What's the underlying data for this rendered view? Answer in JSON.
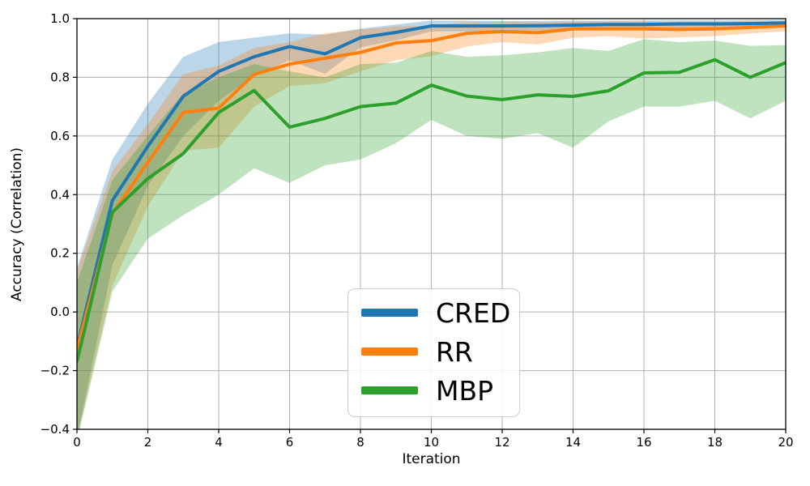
{
  "figure": {
    "background": "#ffffff",
    "grid_color": "#b0b0b0",
    "spine_color": "#000000",
    "tick_color": "#000000"
  },
  "chart_data": {
    "type": "line",
    "title": "",
    "xlabel": "Iteration",
    "ylabel": "Accuracy (Correlation)",
    "xlim": [
      0,
      20
    ],
    "ylim": [
      -0.4,
      1.0
    ],
    "grid": true,
    "legend_position": "lower center",
    "band_opacity": 0.3,
    "xticks": [
      0,
      2,
      4,
      6,
      8,
      10,
      12,
      14,
      16,
      18,
      20
    ],
    "xtick_labels": [
      "0",
      "2",
      "4",
      "6",
      "8",
      "10",
      "12",
      "14",
      "16",
      "18",
      "20"
    ],
    "yticks": [
      -0.4,
      -0.2,
      0.0,
      0.2,
      0.4,
      0.6,
      0.8,
      1.0
    ],
    "ytick_labels": [
      "−0.4",
      "−0.2",
      "0.0",
      "0.2",
      "0.4",
      "0.6",
      "0.8",
      "1.0"
    ],
    "x": [
      0,
      1,
      2,
      3,
      4,
      5,
      6,
      7,
      8,
      9,
      10,
      11,
      12,
      13,
      14,
      15,
      16,
      17,
      18,
      19,
      20
    ],
    "series": [
      {
        "name": "CRED",
        "color": "#1f77b4",
        "values": [
          -0.12,
          0.38,
          0.565,
          0.735,
          0.82,
          0.87,
          0.905,
          0.88,
          0.935,
          0.953,
          0.975,
          0.975,
          0.975,
          0.976,
          0.978,
          0.98,
          0.98,
          0.982,
          0.982,
          0.983,
          0.985
        ],
        "band_upper": [
          0.15,
          0.52,
          0.71,
          0.87,
          0.92,
          0.935,
          0.95,
          0.945,
          0.966,
          0.98,
          0.993,
          0.993,
          0.992,
          0.992,
          0.993,
          0.993,
          0.994,
          0.994,
          0.994,
          0.995,
          0.996
        ],
        "band_lower": [
          -0.43,
          0.16,
          0.43,
          0.6,
          0.72,
          0.805,
          0.858,
          0.812,
          0.902,
          0.926,
          0.956,
          0.957,
          0.958,
          0.959,
          0.962,
          0.965,
          0.966,
          0.968,
          0.969,
          0.97,
          0.973
        ]
      },
      {
        "name": "RR",
        "color": "#ff7f0e",
        "values": [
          -0.13,
          0.335,
          0.51,
          0.68,
          0.695,
          0.81,
          0.845,
          0.865,
          0.885,
          0.917,
          0.925,
          0.95,
          0.956,
          0.952,
          0.965,
          0.965,
          0.965,
          0.963,
          0.965,
          0.97,
          0.975
        ],
        "band_upper": [
          0.14,
          0.48,
          0.64,
          0.81,
          0.84,
          0.9,
          0.92,
          0.95,
          0.963,
          0.973,
          0.975,
          0.988,
          0.99,
          0.988,
          0.99,
          0.99,
          0.99,
          0.988,
          0.988,
          0.99,
          0.992
        ],
        "band_lower": [
          -0.43,
          0.09,
          0.36,
          0.55,
          0.56,
          0.7,
          0.77,
          0.78,
          0.82,
          0.858,
          0.872,
          0.905,
          0.92,
          0.912,
          0.935,
          0.94,
          0.932,
          0.936,
          0.94,
          0.95,
          0.957
        ]
      },
      {
        "name": "MBP",
        "color": "#2ca02c",
        "values": [
          -0.17,
          0.34,
          0.455,
          0.54,
          0.68,
          0.755,
          0.63,
          0.66,
          0.7,
          0.712,
          0.773,
          0.736,
          0.724,
          0.74,
          0.735,
          0.754,
          0.815,
          0.817,
          0.86,
          0.8,
          0.85
        ],
        "band_upper": [
          0.1,
          0.45,
          0.6,
          0.745,
          0.8,
          0.845,
          0.82,
          0.8,
          0.845,
          0.85,
          0.89,
          0.87,
          0.875,
          0.885,
          0.9,
          0.89,
          0.93,
          0.92,
          0.925,
          0.907,
          0.91
        ],
        "band_lower": [
          -0.44,
          0.07,
          0.25,
          0.33,
          0.4,
          0.49,
          0.44,
          0.5,
          0.52,
          0.575,
          0.655,
          0.6,
          0.59,
          0.61,
          0.56,
          0.65,
          0.7,
          0.7,
          0.72,
          0.66,
          0.72
        ]
      }
    ]
  }
}
